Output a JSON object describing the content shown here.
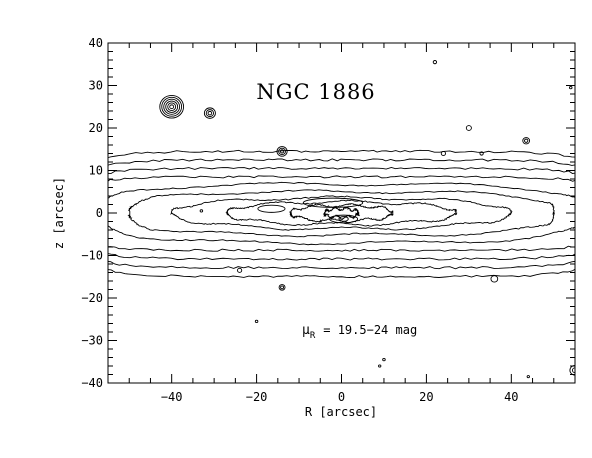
{
  "chart_data": {
    "type": "contour",
    "title": "NGC 1886",
    "annotation": "μ_R = 19.5–24 mag",
    "annotation_parts": {
      "symbol": "μ",
      "subscript": "R",
      "text": "= 19.5−24 mag"
    },
    "xlabel": "R [arcsec]",
    "ylabel": "z [arcsec]",
    "xlim": [
      -55,
      55
    ],
    "ylim": [
      -40,
      40
    ],
    "xticks_labeled": [
      -40,
      -20,
      0,
      20,
      40
    ],
    "yticks_labeled": [
      -40,
      -30,
      -20,
      -10,
      0,
      10,
      20,
      30,
      40
    ],
    "x_tick_labels": [
      "−40",
      "−20",
      "0",
      "20",
      "40"
    ],
    "y_tick_labels": [
      "−40",
      "−30",
      "−20",
      "−10",
      "0",
      "10",
      "20",
      "30",
      "40"
    ],
    "x_minor_step": 5,
    "y_minor_step": 2,
    "grid": false,
    "galaxy_isophotes": [
      {
        "level_index": 1,
        "half_width_x": 60,
        "half_height_z": 14.5
      },
      {
        "level_index": 2,
        "half_width_x": 60,
        "half_height_z": 12.5
      },
      {
        "level_index": 3,
        "half_width_x": 60,
        "half_height_z": 10.5
      },
      {
        "level_index": 4,
        "half_width_x": 60,
        "half_height_z": 8.5
      },
      {
        "level_index": 5,
        "half_width_x": 57,
        "half_height_z": 6.8
      },
      {
        "level_index": 6,
        "half_width_x": 50,
        "half_height_z": 5.0
      },
      {
        "level_index": 7,
        "half_width_x": 40,
        "half_height_z": 3.6
      },
      {
        "level_index": 8,
        "half_width_x": 27,
        "half_height_z": 2.6
      },
      {
        "level_index": 9,
        "half_width_x": 12,
        "half_height_z": 1.8
      },
      {
        "level_index": 10,
        "half_width_x": 4,
        "half_height_z": 1.0
      }
    ],
    "sources": [
      {
        "x": -40,
        "y": 25,
        "rings": 6,
        "r": 2.8
      },
      {
        "x": -31,
        "y": 23.5,
        "rings": 3,
        "r": 1.3
      },
      {
        "x": -14,
        "y": 14.5,
        "rings": 3,
        "r": 1.2
      },
      {
        "x": 43.5,
        "y": 17,
        "rings": 2,
        "r": 0.8
      },
      {
        "x": 30,
        "y": 20,
        "rings": 1,
        "r": 0.6
      },
      {
        "x": 24,
        "y": 14,
        "rings": 1,
        "r": 0.5
      },
      {
        "x": 33,
        "y": 14,
        "rings": 1,
        "r": 0.4
      },
      {
        "x": 22,
        "y": 35.5,
        "rings": 1,
        "r": 0.4
      },
      {
        "x": 54,
        "y": 29.5,
        "rings": 1,
        "r": 0.3
      },
      {
        "x": -33,
        "y": 0.5,
        "rings": 1,
        "r": 0.3
      },
      {
        "x": -14,
        "y": -17.5,
        "rings": 2,
        "r": 0.7
      },
      {
        "x": -24,
        "y": -13.5,
        "rings": 1,
        "r": 0.5
      },
      {
        "x": 36,
        "y": -15.5,
        "rings": 1,
        "r": 0.8
      },
      {
        "x": -20,
        "y": -25.5,
        "rings": 1,
        "r": 0.3
      },
      {
        "x": 10,
        "y": -34.5,
        "rings": 1,
        "r": 0.3
      },
      {
        "x": 9,
        "y": -36,
        "rings": 1,
        "r": 0.25
      },
      {
        "x": 44,
        "y": -38.5,
        "rings": 1,
        "r": 0.2
      },
      {
        "x": 55,
        "y": -37,
        "rings": 2,
        "r": 1.2
      }
    ]
  }
}
